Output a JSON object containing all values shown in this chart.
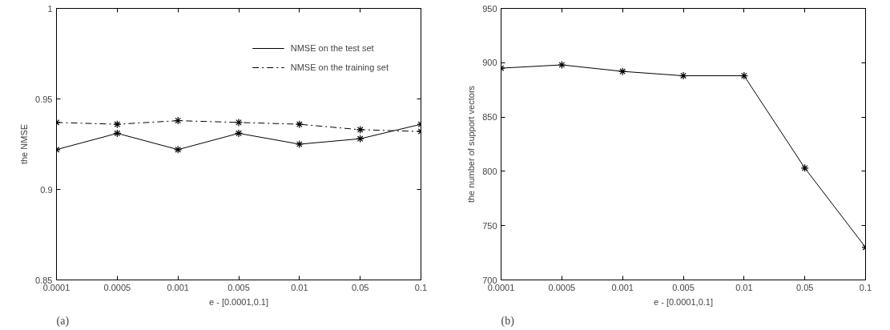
{
  "chart_data": [
    {
      "type": "line",
      "xlabel": "e - [0.0001,0.1]",
      "ylabel": "the NMSE",
      "categories": [
        "0.0001",
        "0.0005",
        "0.001",
        "0.005",
        "0.01",
        "0.05",
        "0.1"
      ],
      "ylim": [
        0.85,
        1
      ],
      "yticks": [
        0.85,
        0.9,
        0.95,
        1
      ],
      "grid": false,
      "legend": "top right",
      "marker": "cross",
      "annotations": [
        "(a)"
      ],
      "series": [
        {
          "name": "NMSE on the test set",
          "color": "#000000",
          "line_style": "solid",
          "values": [
            0.922,
            0.931,
            0.922,
            0.931,
            0.925,
            0.928,
            0.936
          ]
        },
        {
          "name": "NMSE on the training set",
          "color": "#000000",
          "line_style": "dashed",
          "values": [
            0.937,
            0.936,
            0.938,
            0.937,
            0.936,
            0.933,
            0.932
          ]
        }
      ]
    },
    {
      "type": "line",
      "xlabel": "e - [0.0001,0.1]",
      "ylabel": "the number of support vectors",
      "categories": [
        "0.0001",
        "0.0005",
        "0.001",
        "0.005",
        "0.01",
        "0.05",
        "0.1"
      ],
      "ylim": [
        700,
        950
      ],
      "yticks": [
        700,
        750,
        800,
        850,
        900,
        950
      ],
      "grid": false,
      "marker": "cross",
      "annotations": [
        "(b)"
      ],
      "series": [
        {
          "color": "#000000",
          "line_style": "solid",
          "values": [
            895,
            898,
            892,
            888,
            888,
            803,
            730
          ]
        }
      ]
    }
  ]
}
